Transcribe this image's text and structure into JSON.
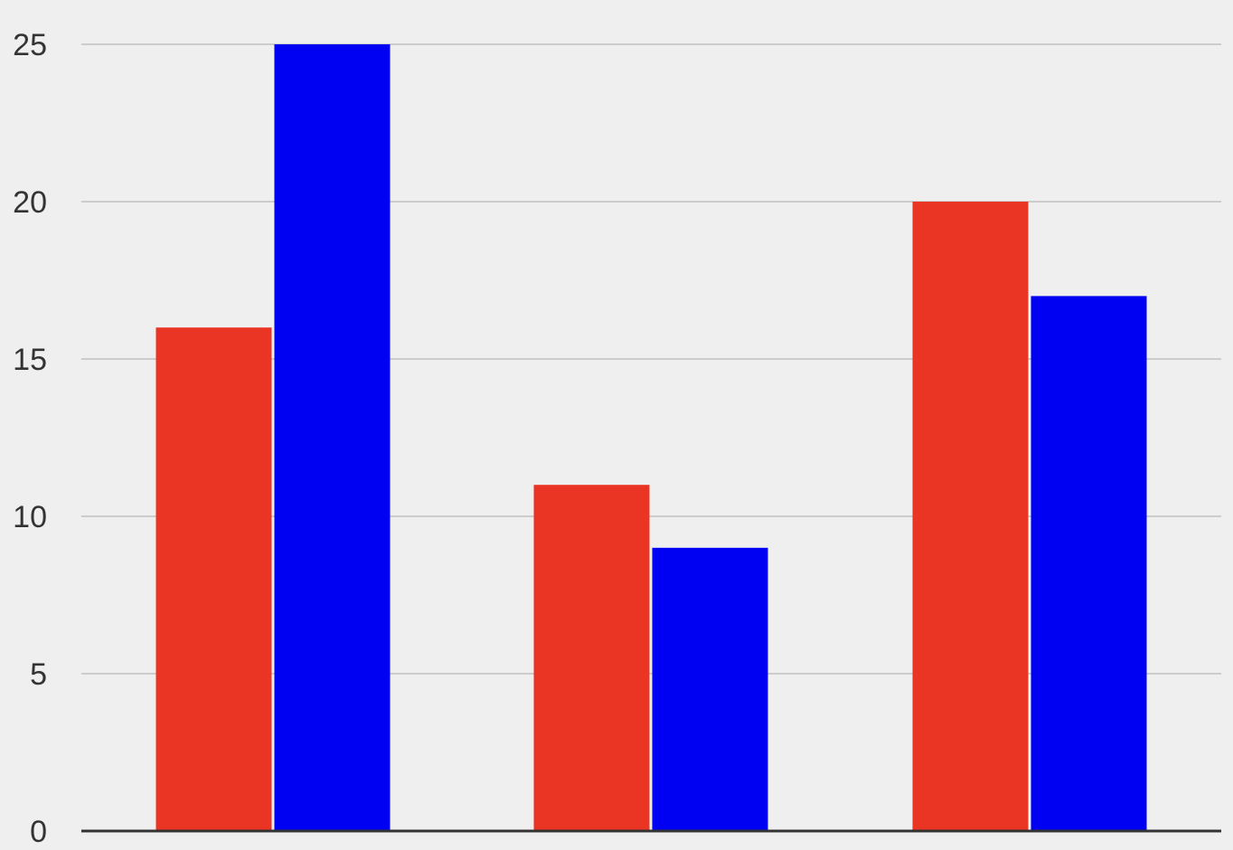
{
  "chart_data": {
    "type": "bar",
    "categories": [
      "",
      "",
      ""
    ],
    "series": [
      {
        "values": [
          16,
          11,
          20
        ],
        "color": "#ea3424"
      },
      {
        "values": [
          25,
          9,
          17
        ],
        "color": "#0000f2"
      }
    ],
    "title": "",
    "xlabel": "",
    "ylabel": "",
    "ylim": [
      0,
      25
    ],
    "yticks": [
      0,
      5,
      10,
      15,
      20,
      25
    ],
    "grid": true,
    "legend": "none"
  },
  "colors": {
    "background": "#efefef",
    "grid": "#cccccc",
    "axis": "#333333"
  }
}
